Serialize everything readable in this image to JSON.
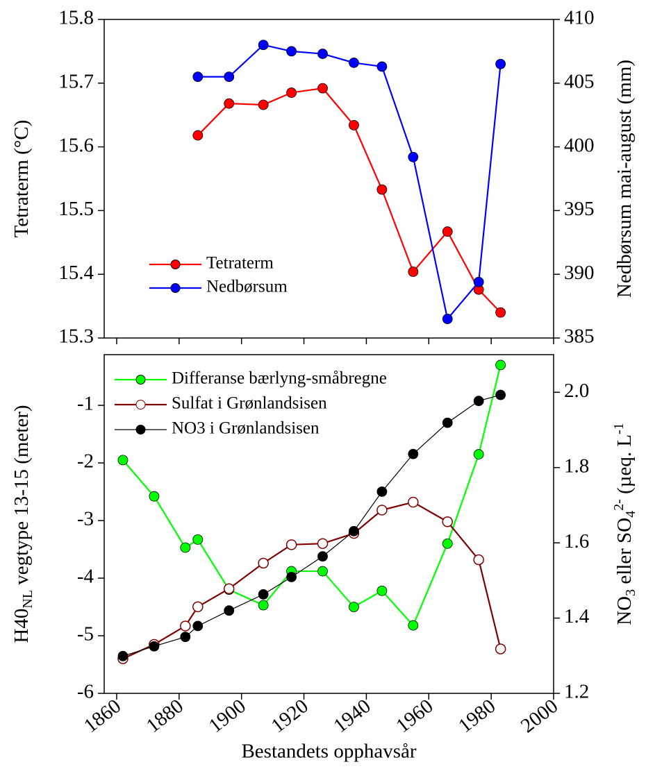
{
  "chart_data": [
    {
      "type": "line",
      "ylabel": "Tetraterm (°C)",
      "y2label": "Nedbørsum mai-august (mm)",
      "x": [
        1886,
        1896,
        1907,
        1916,
        1926,
        1936,
        1945,
        1955,
        1966,
        1976,
        1983
      ],
      "series": [
        {
          "name": "Tetraterm",
          "color": "#ff0000",
          "values": [
            15.618,
            15.668,
            15.666,
            15.685,
            15.692,
            15.634,
            15.533,
            15.404,
            15.467,
            15.376,
            15.34
          ]
        },
        {
          "name": "Nedbørsum",
          "color": "#0000ff",
          "axis": "y2",
          "values": [
            405.5,
            405.5,
            408.0,
            407.5,
            407.3,
            406.6,
            406.3,
            399.2,
            386.5,
            389.4,
            406.5
          ]
        }
      ],
      "xlim": [
        1856,
        2000
      ],
      "xticks": [
        1860,
        1880,
        1900,
        1920,
        1940,
        1960,
        1980,
        2000
      ],
      "show_xtick_labels": false,
      "ylim": [
        15.3,
        15.8
      ],
      "yticks": [
        15.3,
        15.4,
        15.5,
        15.6,
        15.7,
        15.8
      ],
      "y2lim": [
        385,
        410
      ],
      "y2ticks": [
        385,
        390,
        395,
        400,
        405,
        410
      ],
      "legend": "lower left"
    },
    {
      "type": "line",
      "xlabel": "Bestandets opphavsår",
      "ylabel_parts": [
        {
          "text": "H40"
        },
        {
          "text": "NL",
          "shift": "sub"
        },
        {
          "text": "  vegtype 13-15 (meter)"
        }
      ],
      "y2label_parts": [
        {
          "text": "NO"
        },
        {
          "text": "3",
          "shift": "sub"
        },
        {
          "text": " eller SO"
        },
        {
          "text": "4",
          "shift": "sub"
        },
        {
          "text": "2-",
          "shift": "super"
        },
        {
          "text": "  (µeq. L"
        },
        {
          "text": "-1",
          "shift": "super"
        }
      ],
      "x": [
        1862,
        1872,
        1882,
        1886,
        1896,
        1907,
        1916,
        1926,
        1936,
        1945,
        1955,
        1966,
        1976,
        1983
      ],
      "series": [
        {
          "name": "Differanse bærlyng-småbregne",
          "color": "#00ff00",
          "values": [
            -1.95,
            -2.58,
            -3.47,
            -3.33,
            -4.2,
            -4.47,
            -3.88,
            -3.88,
            -4.5,
            -4.22,
            -4.82,
            -3.4,
            -1.85,
            -0.3
          ]
        },
        {
          "name": "Sulfat i Grønlandsisen",
          "color": "#800000",
          "axis": "y2",
          "marker": "open",
          "values": [
            1.292,
            1.33,
            1.379,
            1.43,
            1.478,
            1.546,
            1.595,
            1.598,
            1.625,
            1.687,
            1.708,
            1.656,
            1.555,
            1.318
          ]
        },
        {
          "name": "NO3 i Grønlandsisen",
          "color": "#000000",
          "axis": "y2",
          "line_width": 1.2,
          "values": [
            1.299,
            1.325,
            1.35,
            1.379,
            1.42,
            1.463,
            1.509,
            1.564,
            1.631,
            1.736,
            1.836,
            1.919,
            1.977,
            1.993
          ]
        }
      ],
      "xlim": [
        1856,
        2000
      ],
      "xticks": [
        1860,
        1880,
        1900,
        1920,
        1940,
        1960,
        1980,
        2000
      ],
      "show_xtick_labels": true,
      "ylim": [
        -6,
        -0.12
      ],
      "yticks": [
        -6,
        -5,
        -4,
        -3,
        -2,
        -1
      ],
      "y2lim": [
        1.2,
        2.1
      ],
      "y2ticks": [
        1.2,
        1.4,
        1.6,
        1.8,
        {
          "value": 2.0,
          "label": "2.0"
        }
      ],
      "legend": "upper left"
    }
  ]
}
